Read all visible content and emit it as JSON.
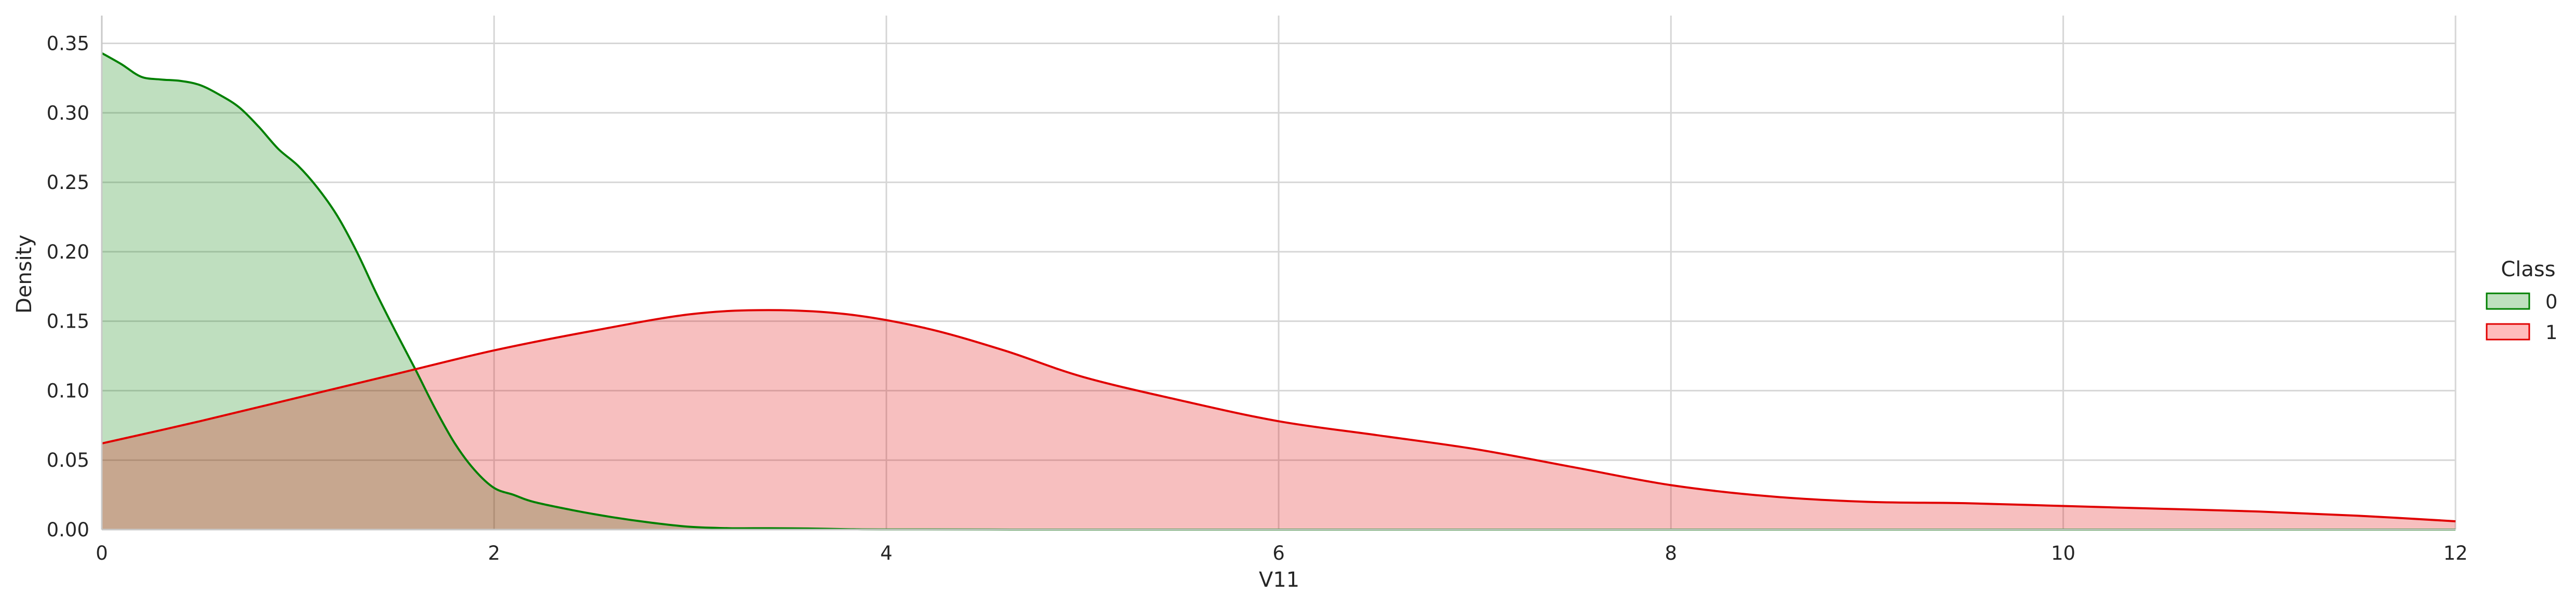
{
  "chart_data": {
    "type": "area",
    "xlabel": "V11",
    "ylabel": "Density",
    "xlim": [
      0,
      12
    ],
    "ylim": [
      0,
      0.37
    ],
    "xticks": [
      0,
      2,
      4,
      6,
      8,
      10,
      12
    ],
    "yticks": [
      0,
      0.05,
      0.1,
      0.15,
      0.2,
      0.25,
      0.3,
      0.35
    ],
    "grid": true,
    "legend": {
      "title": "Class",
      "placement": "right"
    },
    "series": [
      {
        "name": "0",
        "line_color": "#008000",
        "fill_color": "#bfe0bf",
        "x": [
          0,
          0.1,
          0.2,
          0.3,
          0.4,
          0.5,
          0.6,
          0.7,
          0.8,
          0.9,
          1.0,
          1.1,
          1.2,
          1.3,
          1.4,
          1.5,
          1.6,
          1.7,
          1.8,
          1.9,
          2.0,
          2.1,
          2.2,
          2.4,
          2.6,
          2.8,
          3.0,
          3.2,
          3.4,
          3.6,
          3.8,
          4.0,
          5.0,
          6.0,
          8.0,
          10.0,
          12.0
        ],
        "y": [
          0.343,
          0.335,
          0.326,
          0.324,
          0.323,
          0.32,
          0.313,
          0.304,
          0.29,
          0.274,
          0.262,
          0.246,
          0.226,
          0.2,
          0.17,
          0.142,
          0.115,
          0.087,
          0.062,
          0.043,
          0.03,
          0.025,
          0.02,
          0.014,
          0.009,
          0.005,
          0.002,
          0.001,
          0.001,
          0.0008,
          0.0003,
          0.0001,
          0,
          0,
          0,
          0,
          0
        ]
      },
      {
        "name": "1",
        "line_color": "#e00000",
        "fill_color": "#ffbcbc",
        "x": [
          0,
          0.5,
          1.0,
          1.5,
          2.0,
          2.5,
          3.0,
          3.4,
          3.8,
          4.2,
          4.6,
          5.0,
          5.5,
          6.0,
          6.5,
          7.0,
          7.5,
          8.0,
          8.5,
          9.0,
          9.5,
          10.0,
          10.5,
          11.0,
          11.5,
          12.0
        ],
        "y": [
          0.062,
          0.078,
          0.095,
          0.112,
          0.129,
          0.143,
          0.155,
          0.158,
          0.155,
          0.145,
          0.129,
          0.11,
          0.093,
          0.078,
          0.068,
          0.058,
          0.045,
          0.032,
          0.024,
          0.02,
          0.019,
          0.017,
          0.015,
          0.013,
          0.01,
          0.006
        ]
      }
    ]
  }
}
